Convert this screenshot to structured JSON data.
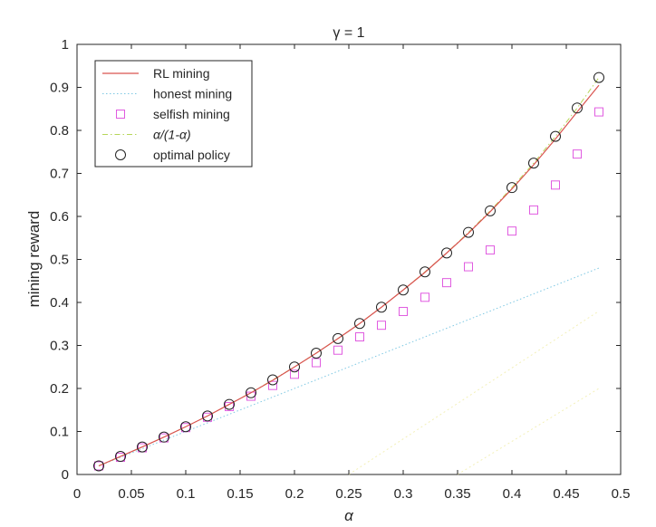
{
  "chart_data": {
    "type": "line",
    "title": "γ = 1",
    "xlabel": "α",
    "ylabel": "mining reward",
    "xlim": [
      0,
      0.5
    ],
    "ylim": [
      0,
      1
    ],
    "x_ticks": [
      "0",
      "0.05",
      "0.1",
      "0.15",
      "0.2",
      "0.25",
      "0.3",
      "0.35",
      "0.4",
      "0.45",
      "0.5"
    ],
    "y_ticks": [
      "0",
      "0.1",
      "0.2",
      "0.3",
      "0.4",
      "0.5",
      "0.6",
      "0.7",
      "0.8",
      "0.9",
      "1"
    ],
    "grid": false,
    "legend_position": "top-left",
    "x": [
      0.02,
      0.04,
      0.06,
      0.08,
      0.1,
      0.12,
      0.14,
      0.16,
      0.18,
      0.2,
      0.22,
      0.24,
      0.26,
      0.28,
      0.3,
      0.32,
      0.34,
      0.36,
      0.38,
      0.4,
      0.42,
      0.44,
      0.46,
      0.48
    ],
    "series": [
      {
        "name": "RL mining",
        "style": "line",
        "color": "#d9534f",
        "values": [
          0.02,
          0.042,
          0.064,
          0.087,
          0.111,
          0.136,
          0.163,
          0.19,
          0.219,
          0.25,
          0.282,
          0.316,
          0.351,
          0.389,
          0.429,
          0.47,
          0.515,
          0.561,
          0.611,
          0.664,
          0.72,
          0.78,
          0.843,
          0.905
        ]
      },
      {
        "name": "honest mining",
        "style": "dotted",
        "color": "#7ec8e3",
        "values": [
          0.02,
          0.04,
          0.06,
          0.08,
          0.1,
          0.12,
          0.14,
          0.16,
          0.18,
          0.2,
          0.22,
          0.24,
          0.26,
          0.28,
          0.3,
          0.32,
          0.34,
          0.36,
          0.38,
          0.4,
          0.42,
          0.44,
          0.46,
          0.48
        ]
      },
      {
        "name": "selfish mining",
        "style": "square-marker",
        "color": "#e05ce0",
        "values": [
          0.02,
          0.04,
          0.062,
          0.085,
          0.109,
          0.133,
          0.158,
          0.182,
          0.207,
          0.233,
          0.26,
          0.289,
          0.32,
          0.347,
          0.379,
          0.412,
          0.446,
          0.483,
          0.522,
          0.566,
          0.615,
          0.673,
          0.745,
          0.843
        ]
      },
      {
        "name": "α/(1-α)",
        "style": "dash-dot",
        "color": "#b6d65a",
        "values": [
          0.02,
          0.042,
          0.064,
          0.087,
          0.111,
          0.136,
          0.163,
          0.19,
          0.22,
          0.25,
          0.282,
          0.316,
          0.351,
          0.389,
          0.429,
          0.471,
          0.515,
          0.563,
          0.613,
          0.667,
          0.724,
          0.786,
          0.852,
          0.923
        ]
      },
      {
        "name": "optimal policy",
        "style": "circle-marker",
        "color": "#222222",
        "values": [
          0.02,
          0.042,
          0.064,
          0.087,
          0.111,
          0.136,
          0.163,
          0.19,
          0.22,
          0.25,
          0.282,
          0.316,
          0.351,
          0.389,
          0.429,
          0.471,
          0.515,
          0.563,
          0.613,
          0.667,
          0.724,
          0.786,
          0.852,
          0.923
        ]
      }
    ],
    "faint_lines": [
      {
        "color": "#f3f0b8",
        "x": [
          0.25,
          0.48
        ],
        "values": [
          0,
          0.38
        ]
      },
      {
        "color": "#f3f0b8",
        "x": [
          0.35,
          0.48
        ],
        "values": [
          0,
          0.2
        ]
      }
    ]
  }
}
